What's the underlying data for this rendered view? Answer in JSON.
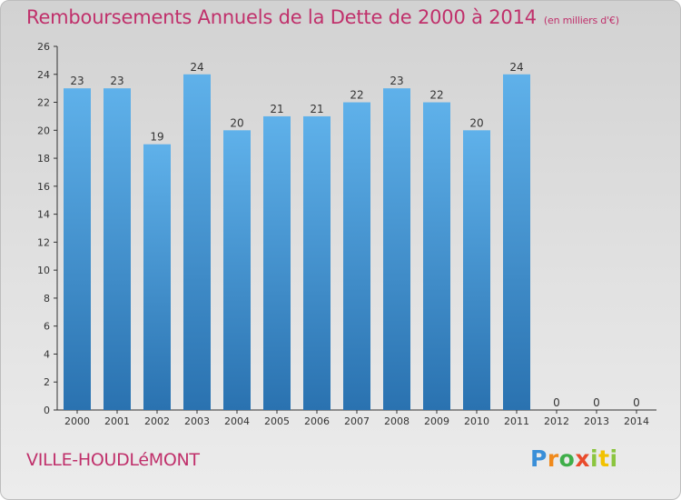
{
  "header": {
    "title": "Remboursements Annuels de la Dette de 2000 à 2014",
    "subtitle": "(en milliers d'€)"
  },
  "footer": {
    "commune": "VILLE-HOUDLéMONT",
    "logo_text": "Proxiti"
  },
  "colors": {
    "title": "#c0306b",
    "bar_top": "#5fb1ea",
    "bar_bottom": "#2a72b0",
    "axis": "#333333"
  },
  "chart_data": {
    "type": "bar",
    "title": "Remboursements Annuels de la Dette de 2000 à 2014",
    "subtitle": "(en milliers d'€)",
    "categories": [
      "2000",
      "2001",
      "2002",
      "2003",
      "2004",
      "2005",
      "2006",
      "2007",
      "2008",
      "2009",
      "2010",
      "2011",
      "2012",
      "2013",
      "2014"
    ],
    "values": [
      23,
      23,
      19,
      24,
      20,
      21,
      21,
      22,
      23,
      22,
      20,
      24,
      0,
      0,
      0
    ],
    "ylim": [
      0,
      26
    ],
    "yticks": [
      0,
      2,
      4,
      6,
      8,
      10,
      12,
      14,
      16,
      18,
      20,
      22,
      24,
      26
    ],
    "xlabel": "",
    "ylabel": "",
    "grid": false,
    "legend": "none",
    "data_labels": true
  }
}
